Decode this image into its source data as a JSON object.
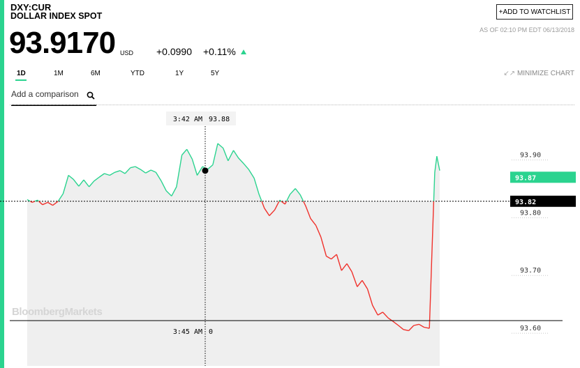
{
  "quote": {
    "ticker": "DXY:CUR",
    "name": "DOLLAR INDEX SPOT",
    "price": "93.9170",
    "currency": "USD",
    "change": "+0.0990",
    "change_pct": "+0.11%",
    "watchlist_label": "+ADD TO WATCHLIST",
    "as_of": "AS OF 02:10 PM EDT 06/13/2018"
  },
  "tabs": [
    "1D",
    "1M",
    "6M",
    "YTD",
    "1Y",
    "5Y"
  ],
  "active_tab": "1D",
  "minimize_label": "MINIMIZE CHART",
  "comparison": {
    "placeholder": "Add a comparison"
  },
  "watermark": "BloombergMarkets",
  "colors": {
    "up": "#2bd38f",
    "down": "#f0312b",
    "area": "#efefef",
    "accent": "#2bd38f"
  },
  "chart_data": {
    "type": "line",
    "y_ticks": [
      "93.90",
      "93.80",
      "93.70",
      "93.60"
    ],
    "ylim": [
      93.535,
      93.985
    ],
    "baseline": 93.82,
    "baseline_label": "93.82",
    "last_value": 93.87,
    "last_label": "93.87",
    "crosshair": {
      "time": "3:42 AM",
      "value": "93.88",
      "time2": "3:45 AM",
      "volume": "0"
    },
    "x_range": [
      0,
      100
    ],
    "series": [
      {
        "x": [
          0,
          1.2,
          2.5,
          3.7,
          5,
          6.2,
          7.5,
          8.7,
          10,
          11.2,
          12.5,
          13.7,
          15,
          16.2,
          17.5,
          18.7,
          20,
          21.2,
          22.5,
          23.7,
          25,
          26.2,
          27.5,
          28.7,
          30,
          31.2,
          32.5,
          33.7,
          35,
          36.2,
          37.5,
          38.7,
          40,
          41.2,
          42.5,
          43.7,
          45,
          46.2,
          47.5,
          48.7,
          50,
          51.2,
          52.5,
          53.7,
          55,
          56.2,
          57.5,
          58.7,
          60,
          61.2,
          62.5,
          63.7,
          65,
          66.2,
          67.5,
          68.7,
          70,
          71.2,
          72.5,
          73.7,
          75,
          76.2,
          77.5,
          78.7,
          80,
          81.2,
          82.5,
          83.7,
          85,
          86.2,
          87.5,
          88.7,
          90,
          91.2,
          92.5,
          93.7,
          95,
          96.2,
          97.5,
          98.2,
          98.8,
          99.3,
          100
        ],
        "y": [
          93.823,
          93.818,
          93.822,
          93.814,
          93.818,
          93.813,
          93.82,
          93.833,
          93.865,
          93.858,
          93.846,
          93.857,
          93.845,
          93.855,
          93.862,
          93.868,
          93.865,
          93.87,
          93.873,
          93.868,
          93.878,
          93.88,
          93.875,
          93.869,
          93.874,
          93.87,
          93.855,
          93.838,
          93.829,
          93.845,
          93.9,
          93.91,
          93.893,
          93.865,
          93.88,
          93.875,
          93.883,
          93.92,
          93.912,
          93.89,
          93.908,
          93.895,
          93.885,
          93.875,
          93.86,
          93.832,
          93.808,
          93.795,
          93.805,
          93.822,
          93.815,
          93.832,
          93.842,
          93.831,
          93.812,
          93.79,
          93.778,
          93.758,
          93.725,
          93.72,
          93.728,
          93.7,
          93.712,
          93.698,
          93.672,
          93.683,
          93.668,
          93.64,
          93.623,
          93.628,
          93.618,
          93.612,
          93.605,
          93.598,
          93.596,
          93.605,
          93.607,
          93.602,
          93.6,
          93.75,
          93.87,
          93.898,
          93.873
        ]
      }
    ]
  }
}
